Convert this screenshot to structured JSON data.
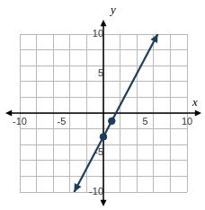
{
  "chart_data": {
    "type": "line",
    "x_label": "x",
    "y_label": "y",
    "xlim": [
      -10,
      10
    ],
    "ylim": [
      -10,
      10
    ],
    "xticks": [
      -10,
      -5,
      5,
      10
    ],
    "yticks": [
      -10,
      -5,
      5,
      10
    ],
    "grid": true,
    "series": [
      {
        "type": "line",
        "color": "#1c3d5e",
        "line_style": "solid",
        "x": [
          -3.5,
          6.5
        ],
        "values": [
          -10,
          10
        ]
      },
      {
        "type": "scatter",
        "color": "#1c3d5e",
        "marker": "circle",
        "x": [
          0,
          1
        ],
        "values": [
          -3,
          -1
        ]
      }
    ]
  }
}
